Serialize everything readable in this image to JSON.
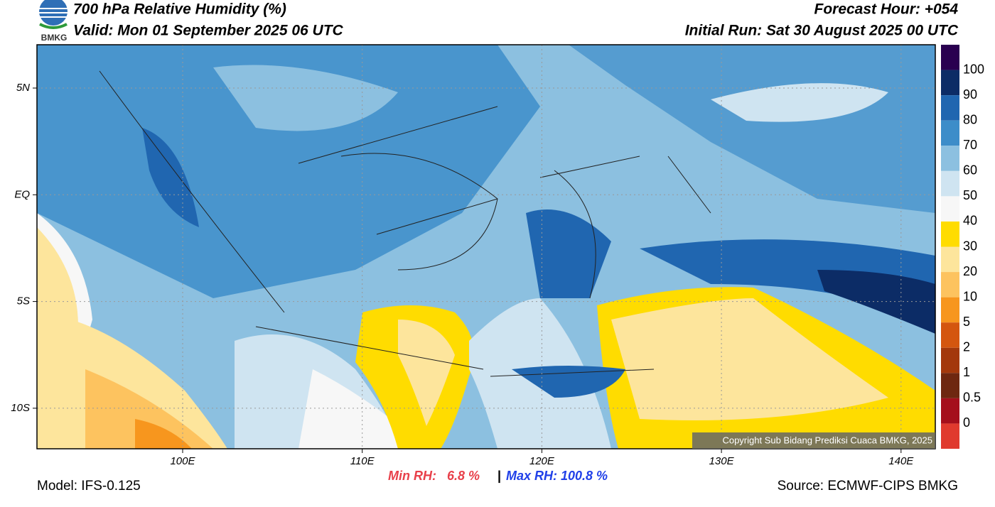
{
  "header": {
    "title": "700 hPa Relative Humidity (%)",
    "valid": "Valid: Mon 01 September 2025 06 UTC",
    "forecast_hour": "Forecast Hour: +054",
    "initial_run": "Initial Run: Sat 30 August 2025 00 UTC",
    "logo": "BMKG"
  },
  "map": {
    "lat_labels": [
      "5N",
      "EQ",
      "5S",
      "10S"
    ],
    "lon_labels": [
      "100E",
      "110E",
      "120E",
      "130E",
      "140E"
    ],
    "copyright": "Copyright Sub Bidang Prediksi Cuaca BMKG, 2025"
  },
  "colorbar": {
    "labels": [
      "100",
      "90",
      "80",
      "70",
      "60",
      "50",
      "40",
      "30",
      "20",
      "10",
      "5",
      "2",
      "1",
      "0.5",
      "0"
    ],
    "colors": [
      "#2a0050",
      "#0c2c66",
      "#2066b0",
      "#3d8dc9",
      "#8cc0e0",
      "#cfe4f1",
      "#f7f7f7",
      "#ffdc00",
      "#fde59c",
      "#fdc35f",
      "#f7961e",
      "#d4560f",
      "#a3380c",
      "#6e2710",
      "#a50f1c",
      "#e03a2e"
    ]
  },
  "stats": {
    "min": "Min RH:   6.8 %",
    "sep": "|",
    "max": "Max RH: 100.8 %"
  },
  "footer": {
    "model": "Model: IFS-0.125",
    "source": "Source: ECMWF-CIPS BMKG"
  }
}
